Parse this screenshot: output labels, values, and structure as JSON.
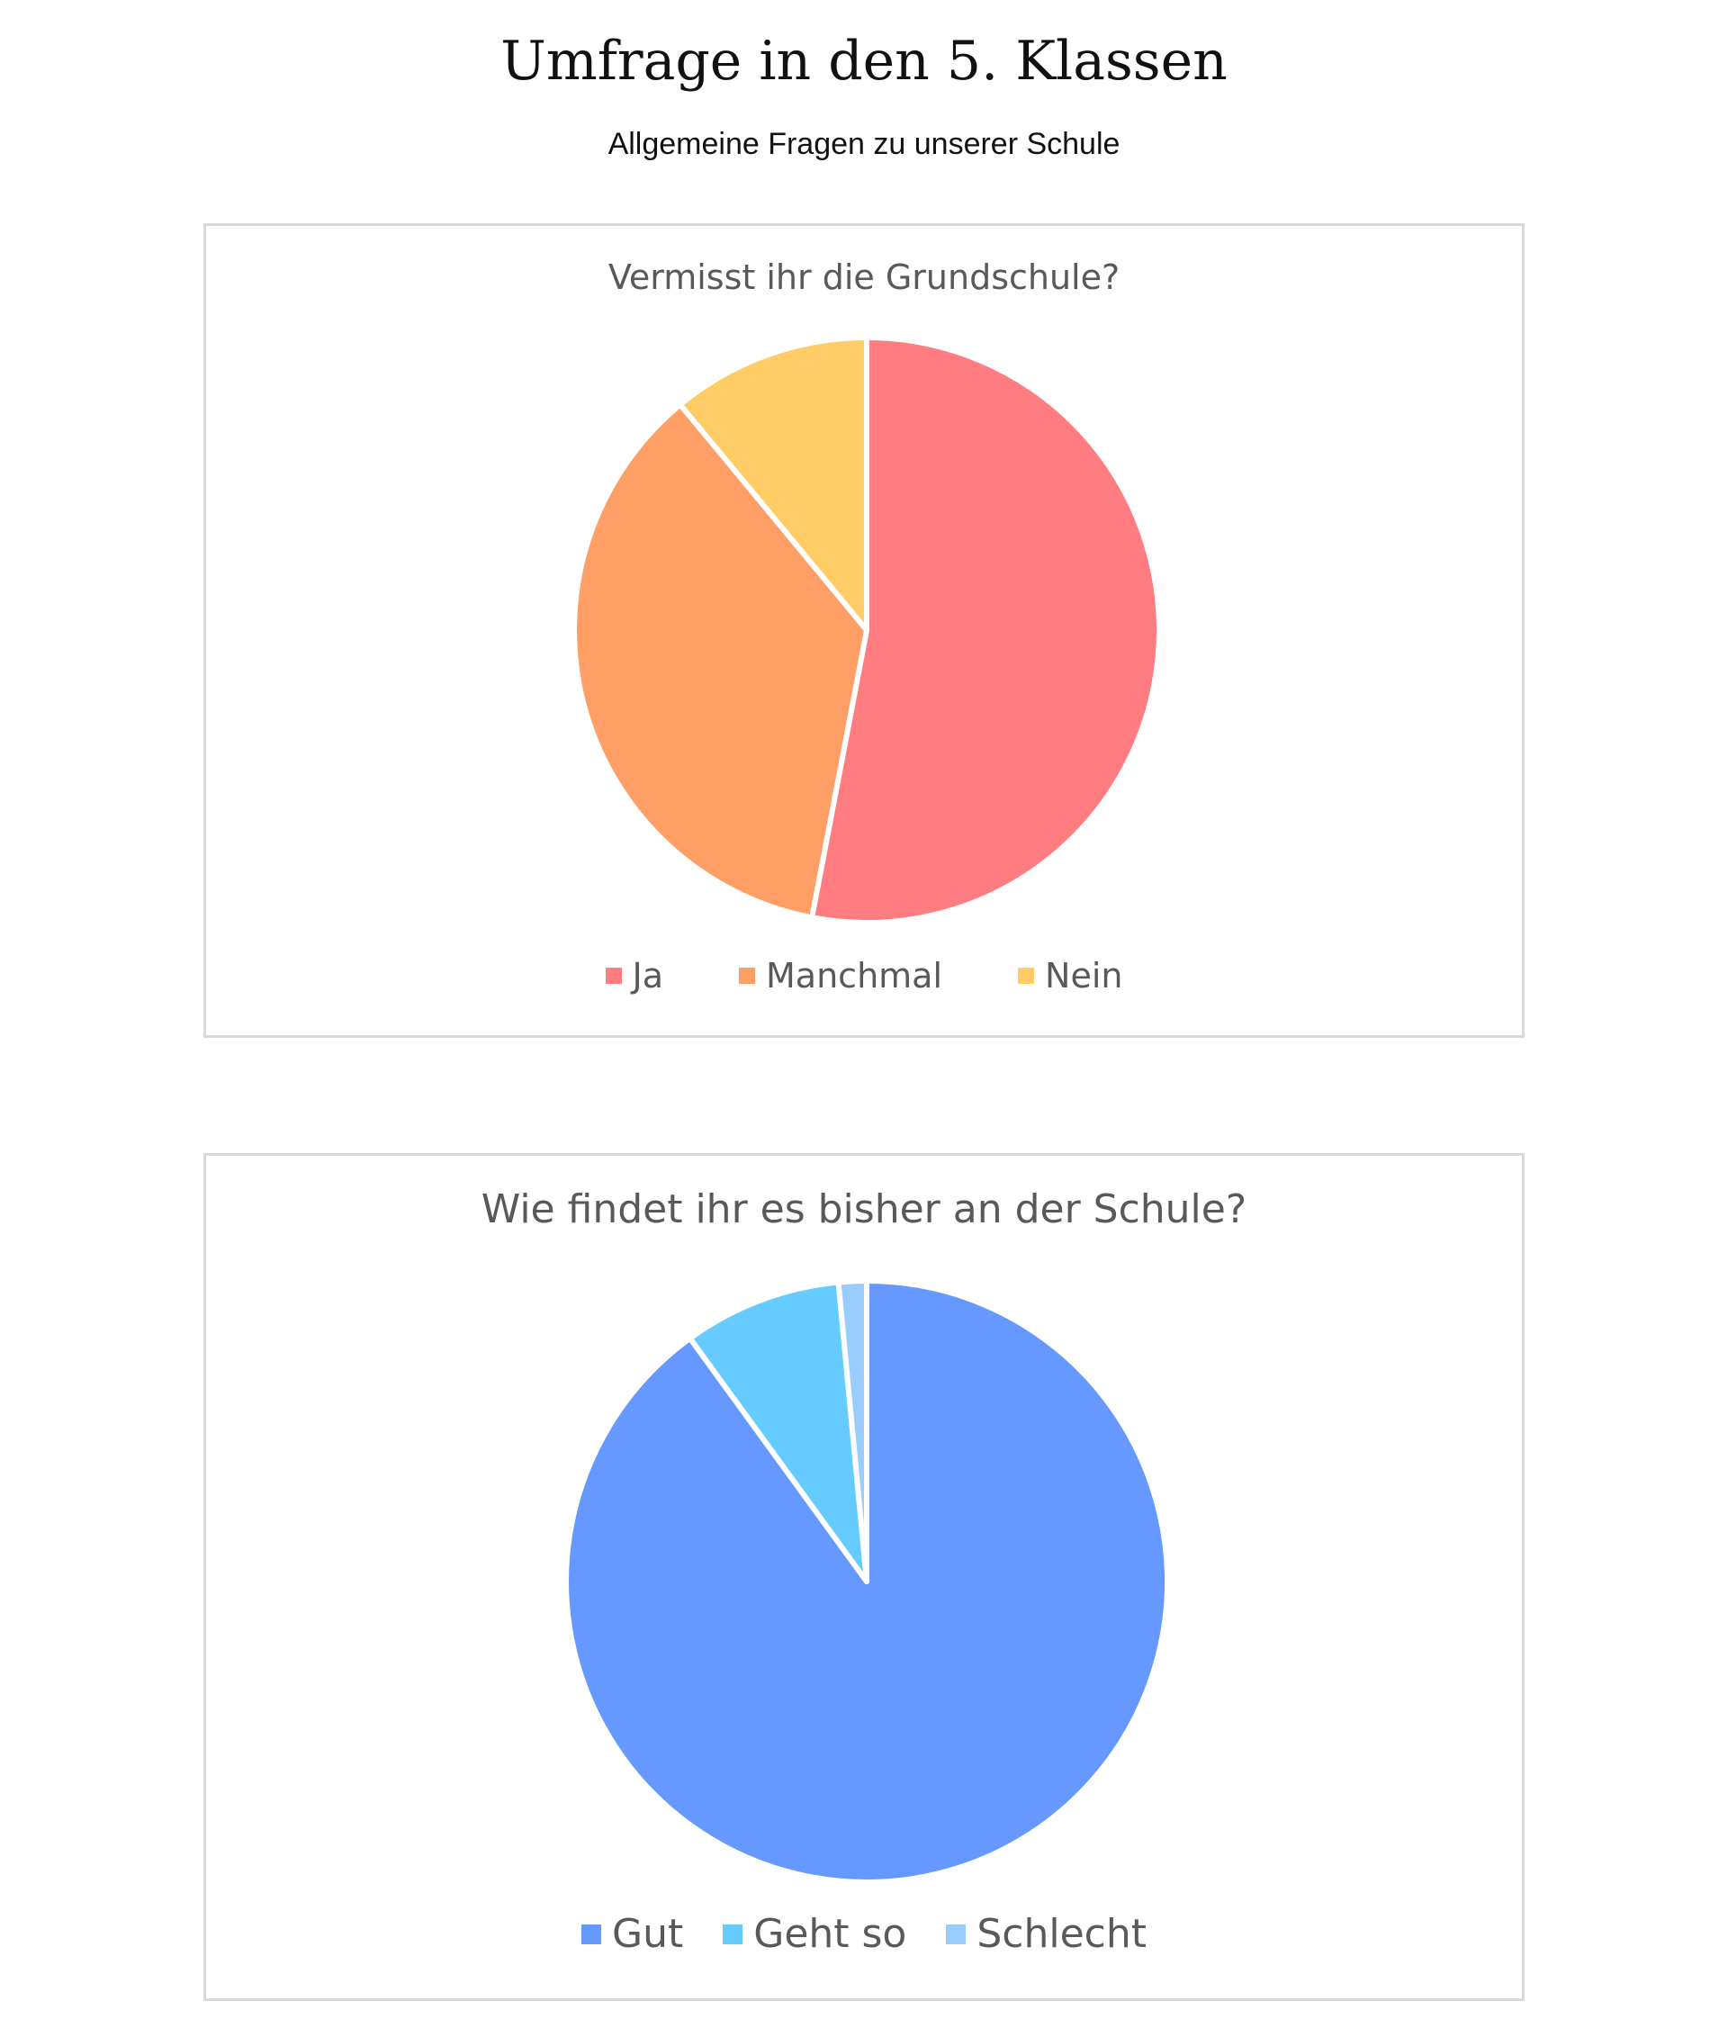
{
  "page": {
    "title": "Umfrage in den 5. Klassen",
    "subtitle": "Allgemeine Fragen zu unserer Schule"
  },
  "chart_data": [
    {
      "type": "pie",
      "title": "Vermisst ihr die Grundschule?",
      "categories": [
        "Ja",
        "Manchmal",
        "Nein"
      ],
      "values": [
        53,
        36,
        11
      ],
      "colors": [
        "#ff7c80",
        "#ff9e65",
        "#ffcc66"
      ],
      "legend": "bottom",
      "start_angle": "12 o'clock",
      "direction": "clockwise"
    },
    {
      "type": "pie",
      "title": "Wie findet ihr es bisher an der Schule?",
      "categories": [
        "Gut",
        "Geht so",
        "Schlecht"
      ],
      "values": [
        90,
        8.5,
        1.5
      ],
      "colors": [
        "#6699ff",
        "#66ccff",
        "#99ccff"
      ],
      "legend": "bottom",
      "start_angle": "12 o'clock",
      "direction": "clockwise"
    }
  ]
}
